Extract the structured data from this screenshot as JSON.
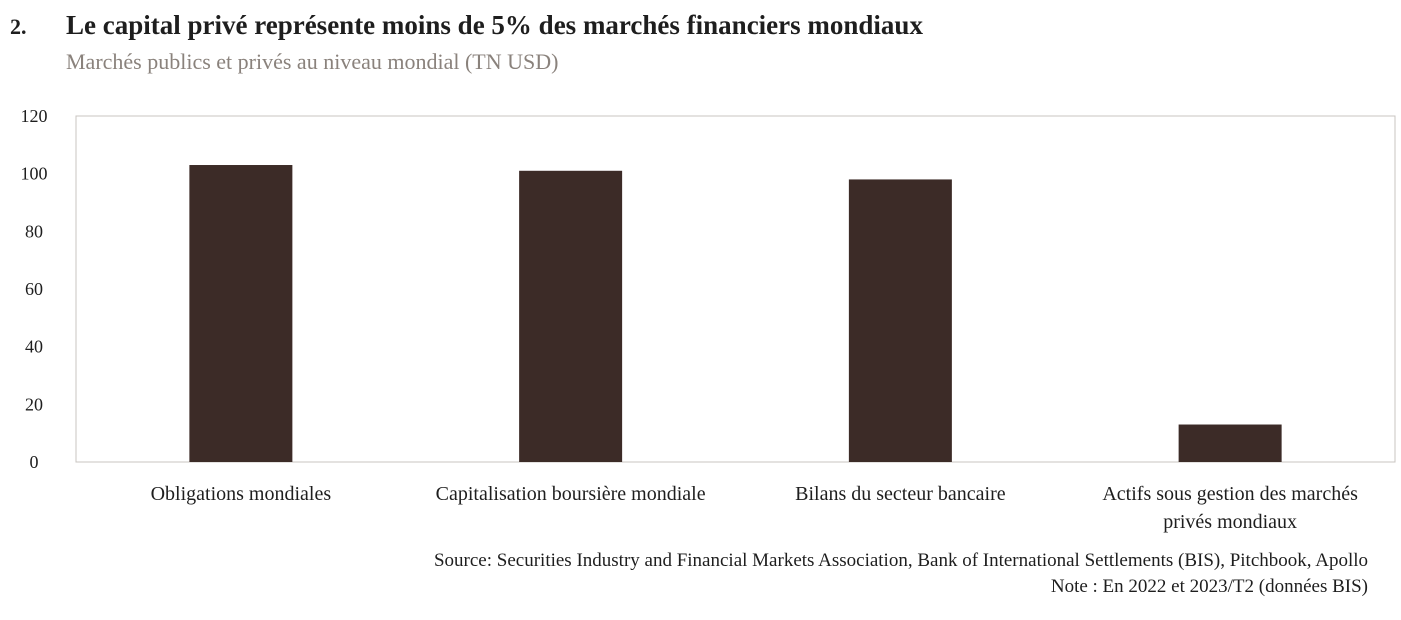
{
  "header": {
    "number": "2.",
    "title": "Le capital privé représente moins de 5% des marchés financiers mondiaux",
    "subtitle": "Marchés publics et privés au niveau mondial (TN USD)"
  },
  "footer": {
    "source": "Source: Securities Industry and Financial Markets Association, Bank of International Settlements (BIS), Pitchbook, Apollo",
    "note": "Note : En 2022 et 2023/T2 (données BIS)"
  },
  "colors": {
    "bar": "#3c2b27",
    "axis": "#c8c4c0",
    "text": "#1e1e1e",
    "subtitle": "#8a827c"
  },
  "chart_data": {
    "type": "bar",
    "title": "Le capital privé représente moins de 5% des marchés financiers mondiaux",
    "subtitle": "Marchés publics et privés au niveau mondial (TN USD)",
    "categories": [
      [
        "Obligations mondiales"
      ],
      [
        "Capitalisation boursière mondiale"
      ],
      [
        "Bilans du secteur bancaire"
      ],
      [
        "Actifs sous gestion des marchés",
        "privés mondiaux"
      ]
    ],
    "values": [
      103,
      101,
      98,
      13
    ],
    "ylim": [
      0,
      120
    ],
    "yticks": [
      0,
      20,
      40,
      60,
      80,
      100,
      120
    ],
    "ytick_labels": [
      "0",
      "20",
      "40",
      "60",
      "80",
      "100",
      "120"
    ],
    "xlabel": "",
    "ylabel": "",
    "grid": false,
    "legend": "none"
  }
}
